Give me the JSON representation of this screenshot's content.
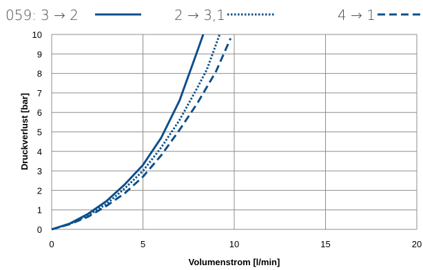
{
  "chart_data": {
    "type": "line",
    "legend_prefix": "059:",
    "xlabel": "Volumenstrom [l/min]",
    "ylabel": "Druckverlust [bar]",
    "xlim": [
      0,
      20
    ],
    "ylim": [
      0,
      10
    ],
    "x_ticks": [
      "0",
      "5",
      "10",
      "15",
      "20"
    ],
    "y_ticks": [
      "0",
      "1",
      "2",
      "3",
      "4",
      "5",
      "6",
      "7",
      "8",
      "9",
      "10"
    ],
    "grid": true,
    "legend_position": "top",
    "series_color": "#0b4f8c",
    "series": [
      {
        "name": "3 → 2",
        "style": "solid",
        "x": [
          0,
          1,
          2,
          3,
          4,
          5,
          6,
          7,
          7.5,
          8,
          8.3
        ],
        "y": [
          0,
          0.3,
          0.8,
          1.45,
          2.3,
          3.3,
          4.7,
          6.6,
          7.9,
          9.2,
          10
        ]
      },
      {
        "name": "2 → 3,1",
        "style": "dotted",
        "x": [
          0,
          1,
          2,
          3,
          4,
          5,
          6,
          7,
          8,
          8.5,
          9.2
        ],
        "y": [
          0,
          0.28,
          0.72,
          1.3,
          2.1,
          3.0,
          4.2,
          5.6,
          7.3,
          8.2,
          10
        ]
      },
      {
        "name": "4 → 1",
        "style": "dashed",
        "x": [
          0,
          1,
          2,
          3,
          4,
          5,
          6,
          7,
          8,
          9,
          9.8
        ],
        "y": [
          0,
          0.27,
          0.65,
          1.2,
          1.85,
          2.7,
          3.8,
          5.1,
          6.5,
          8.1,
          9.8
        ]
      }
    ]
  }
}
